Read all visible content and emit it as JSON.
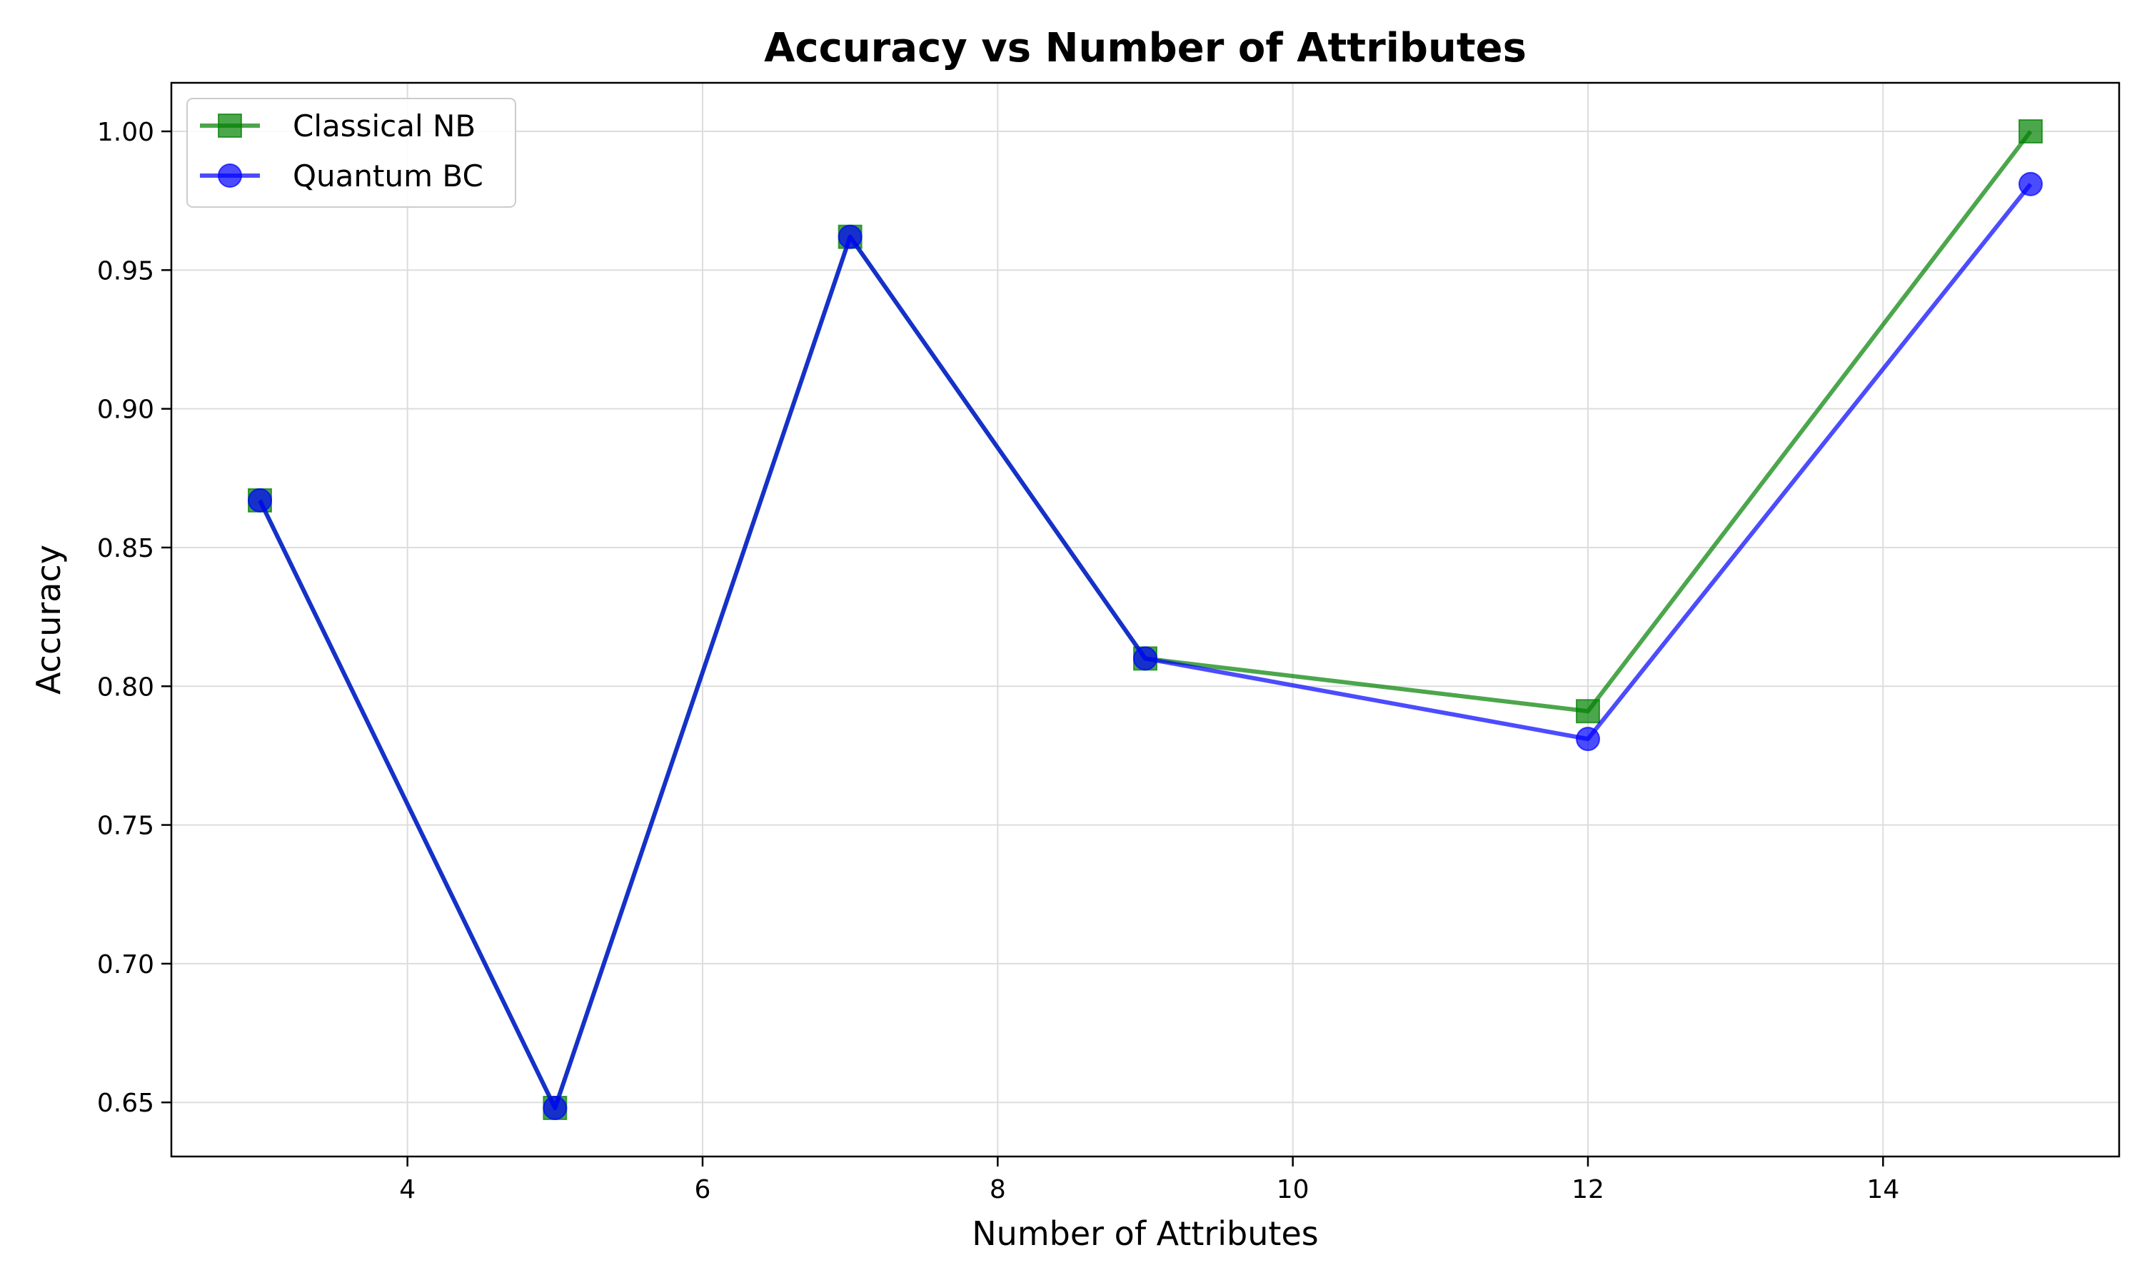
{
  "chart_data": {
    "type": "line",
    "title": "Accuracy vs Number of Attributes",
    "xlabel": "Number of Attributes",
    "ylabel": "Accuracy",
    "xlim": [
      2.4,
      15.6
    ],
    "ylim": [
      0.6305,
      1.0175
    ],
    "xticks": [
      4,
      6,
      8,
      10,
      12,
      14
    ],
    "xtick_labels": [
      "4",
      "6",
      "8",
      "10",
      "12",
      "14"
    ],
    "yticks": [
      0.65,
      0.7,
      0.75,
      0.8,
      0.85,
      0.9,
      0.95,
      1.0
    ],
    "ytick_labels": [
      "0.65",
      "0.70",
      "0.75",
      "0.80",
      "0.85",
      "0.90",
      "0.95",
      "1.00"
    ],
    "grid": true,
    "legend_position": "top-left",
    "series": [
      {
        "name": "Classical NB",
        "color": "#008000",
        "marker": "square",
        "x": [
          3,
          5,
          7,
          9,
          12,
          15
        ],
        "y": [
          0.867,
          0.648,
          0.962,
          0.81,
          0.791,
          1.0
        ]
      },
      {
        "name": "Quantum BC",
        "color": "#0000ff",
        "marker": "circle",
        "x": [
          3,
          5,
          7,
          9,
          12,
          15
        ],
        "y": [
          0.867,
          0.648,
          0.962,
          0.81,
          0.781,
          0.981
        ]
      }
    ]
  }
}
